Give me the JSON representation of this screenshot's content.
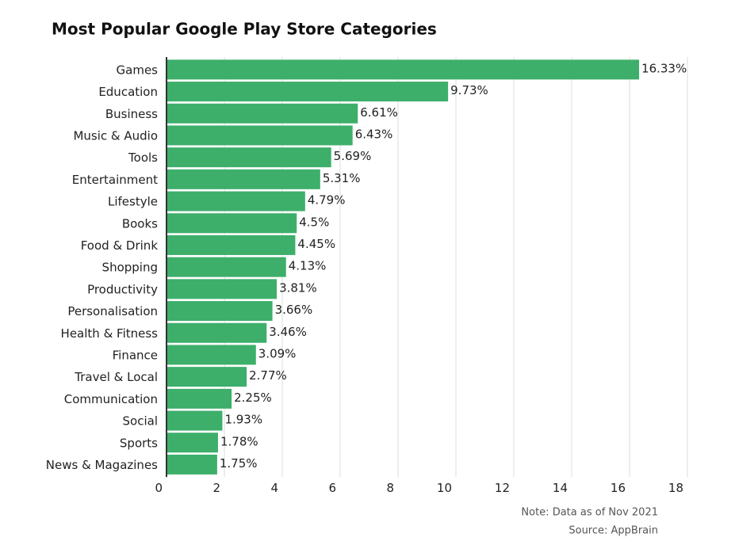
{
  "chart_data": {
    "type": "bar",
    "orientation": "horizontal",
    "title": "Most Popular Google Play Store Categories",
    "categories": [
      "Games",
      "Education",
      "Business",
      "Music & Audio",
      "Tools",
      "Entertainment",
      "Lifestyle",
      "Books",
      "Food & Drink",
      "Shopping",
      "Productivity",
      "Personalisation",
      "Health & Fitness",
      "Finance",
      "Travel & Local",
      "Communication",
      "Social",
      "Sports",
      "News & Magazines"
    ],
    "values": [
      16.33,
      9.73,
      6.61,
      6.43,
      5.69,
      5.31,
      4.79,
      4.5,
      4.45,
      4.13,
      3.81,
      3.66,
      3.46,
      3.09,
      2.77,
      2.25,
      1.93,
      1.78,
      1.75
    ],
    "value_labels": [
      "16.33%",
      "9.73%",
      "6.61%",
      "6.43%",
      "5.69%",
      "5.31%",
      "4.79%",
      "4.5%",
      "4.45%",
      "4.13%",
      "3.81%",
      "3.66%",
      "3.46%",
      "3.09%",
      "2.77%",
      "2.25%",
      "1.93%",
      "1.78%",
      "1.75%"
    ],
    "color": "#3daf6b",
    "xlim": [
      0,
      18
    ],
    "xticks": [
      0,
      2,
      4,
      6,
      8,
      10,
      12,
      14,
      16,
      18
    ],
    "grid": true,
    "notes": [
      "Note: Data as of Nov 2021",
      "Source: AppBrain"
    ]
  }
}
